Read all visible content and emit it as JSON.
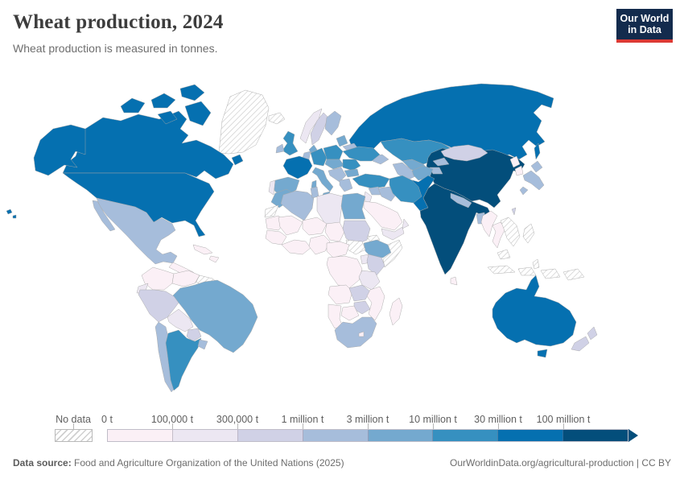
{
  "header": {
    "title": "Wheat production, 2024",
    "subtitle": "Wheat production is measured in tonnes."
  },
  "logo": {
    "line1": "Our World",
    "line2": "in Data",
    "bg": "#132b4d",
    "accent": "#dc3a34"
  },
  "legend": {
    "no_data_label": "No data",
    "bins": [
      {
        "label": "0 t",
        "color": "#fbf0f6"
      },
      {
        "label": "100,000 t",
        "color": "#ece7f2"
      },
      {
        "label": "300,000 t",
        "color": "#d0d1e6"
      },
      {
        "label": "1 million t",
        "color": "#a6bddb"
      },
      {
        "label": "3 million t",
        "color": "#74a9cf"
      },
      {
        "label": "10 million t",
        "color": "#3690c0"
      },
      {
        "label": "30 million t",
        "color": "#0570b0"
      },
      {
        "label": "100 million t",
        "color": "#034e7b"
      }
    ]
  },
  "footer": {
    "source_label": "Data source:",
    "source_text": " Food and Agriculture Organization of the United Nations (2025)",
    "right_text": "OurWorldinData.org/agricultural-production | CC BY"
  },
  "chart_data": {
    "type": "choropleth",
    "title": "Wheat production, 2024",
    "unit": "tonnes",
    "legend_bins": [
      "0 t",
      "100,000 t",
      "300,000 t",
      "1 million t",
      "3 million t",
      "10 million t",
      "30 million t",
      "100 million t"
    ],
    "no_data_label": "No data",
    "regions_by_bin": {
      "100 million t": [
        "China",
        "India"
      ],
      "30 million t": [
        "Russia",
        "United States",
        "Canada",
        "Australia",
        "Pakistan",
        "France"
      ],
      "10 million t": [
        "Germany",
        "Poland",
        "United Kingdom",
        "Ukraine",
        "Argentina",
        "Iran",
        "Kazakhstan",
        "Turkey",
        "Romania"
      ],
      "3 million t": [
        "Spain",
        "Brazil",
        "Egypt",
        "Ethiopia",
        "Afghanistan",
        "Uzbekistan",
        "Italy",
        "Czechia",
        "Bulgaria",
        "Lithuania",
        "Morocco",
        "Denmark"
      ],
      "1 million t": [
        "Mexico",
        "Japan",
        "Chile",
        "South Africa",
        "Algeria",
        "Tunisia",
        "Iraq",
        "Syria",
        "Uruguay",
        "Belarus",
        "Greece",
        "Ireland",
        "Nepal",
        "Bangladesh",
        "Georgia",
        "Serbia",
        "Netherlands",
        "Finland",
        "Kyrgyzstan",
        "Tajikistan",
        "Turkmenistan"
      ],
      "300,000 t": [
        "Mongolia",
        "Peru",
        "Sudan",
        "New Zealand",
        "Sweden",
        "Paraguay",
        "Zambia",
        "Zimbabwe",
        "Kenya",
        "Taiwan"
      ],
      "100,000 t": [
        "Norway",
        "Bolivia",
        "Tanzania",
        "Libya",
        "Uganda",
        "Yemen",
        "Oman",
        "Israel",
        "Portugal",
        "Ecuador"
      ],
      "0 t": [
        "Saudi Arabia",
        "Colombia",
        "Venezuela",
        "Mauritania",
        "Mali",
        "Niger",
        "Chad",
        "Senegal",
        "Guinea",
        "Nigeria",
        "Cameroon",
        "DR Congo",
        "Angola",
        "Botswana",
        "Namibia",
        "Mozambique",
        "Madagascar",
        "Lesotho",
        "Myanmar",
        "Thailand",
        "North Korea",
        "South Korea",
        "Sri Lanka",
        "Guatemala",
        "Cuba",
        "Dominican Republic"
      ],
      "No data": [
        "Greenland",
        "Iceland",
        "Guyana",
        "Suriname",
        "Western Sahara",
        "South Sudan",
        "Eritrea",
        "Somalia",
        "Vietnam",
        "Laos",
        "Cambodia",
        "Malaysia",
        "Indonesia",
        "Philippines",
        "Papua New Guinea"
      ]
    }
  }
}
